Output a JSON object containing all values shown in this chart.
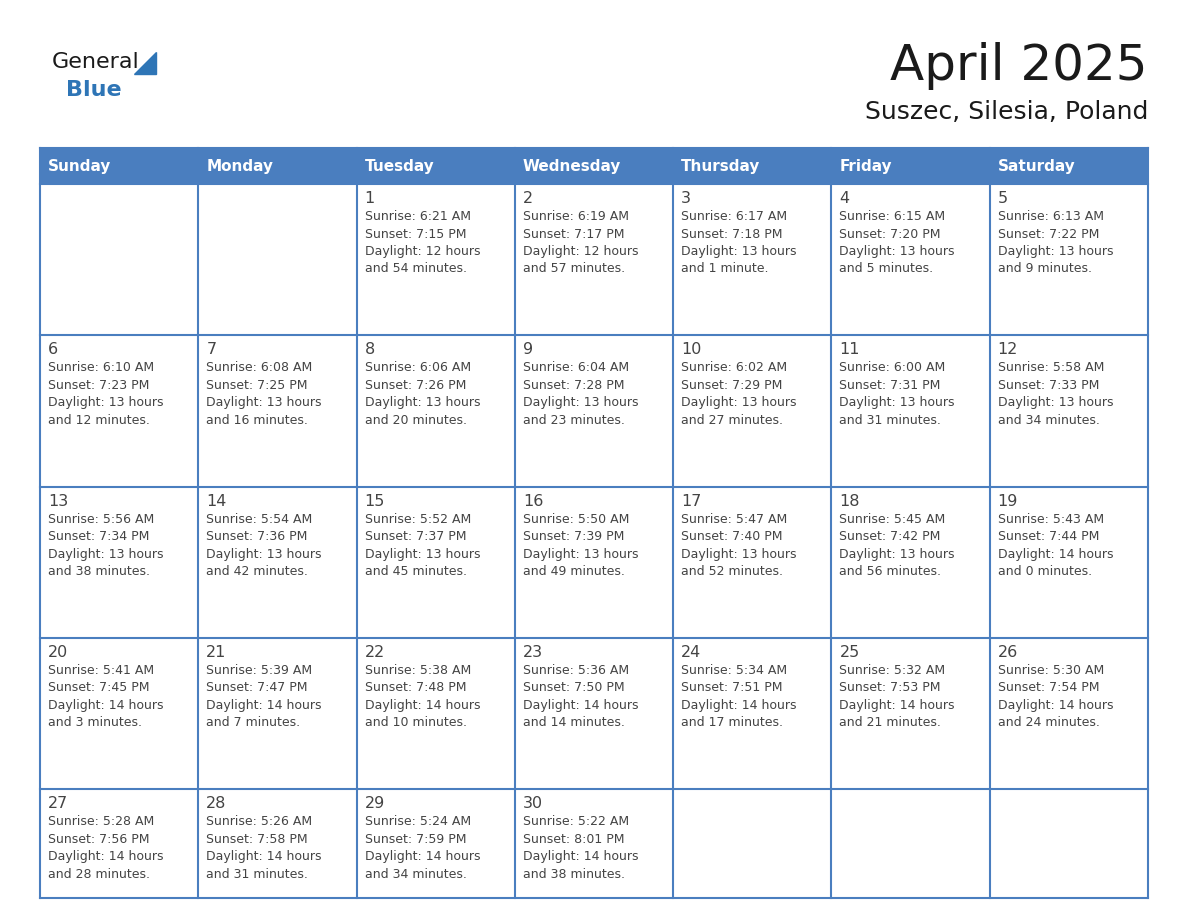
{
  "title": "April 2025",
  "subtitle": "Suszec, Silesia, Poland",
  "days_of_week": [
    "Sunday",
    "Monday",
    "Tuesday",
    "Wednesday",
    "Thursday",
    "Friday",
    "Saturday"
  ],
  "header_bg": "#4a7ebf",
  "header_text": "#FFFFFF",
  "cell_bg": "#FFFFFF",
  "border_color": "#4a7ebf",
  "text_color": "#444444",
  "title_color": "#1a1a1a",
  "subtitle_color": "#1a1a1a",
  "logo_general_color": "#1a1a1a",
  "logo_blue_color": "#2E75B6",
  "logo_triangle_color": "#2E75B6",
  "weeks": [
    [
      {
        "day": "",
        "text": ""
      },
      {
        "day": "",
        "text": ""
      },
      {
        "day": "1",
        "text": "Sunrise: 6:21 AM\nSunset: 7:15 PM\nDaylight: 12 hours\nand 54 minutes."
      },
      {
        "day": "2",
        "text": "Sunrise: 6:19 AM\nSunset: 7:17 PM\nDaylight: 12 hours\nand 57 minutes."
      },
      {
        "day": "3",
        "text": "Sunrise: 6:17 AM\nSunset: 7:18 PM\nDaylight: 13 hours\nand 1 minute."
      },
      {
        "day": "4",
        "text": "Sunrise: 6:15 AM\nSunset: 7:20 PM\nDaylight: 13 hours\nand 5 minutes."
      },
      {
        "day": "5",
        "text": "Sunrise: 6:13 AM\nSunset: 7:22 PM\nDaylight: 13 hours\nand 9 minutes."
      }
    ],
    [
      {
        "day": "6",
        "text": "Sunrise: 6:10 AM\nSunset: 7:23 PM\nDaylight: 13 hours\nand 12 minutes."
      },
      {
        "day": "7",
        "text": "Sunrise: 6:08 AM\nSunset: 7:25 PM\nDaylight: 13 hours\nand 16 minutes."
      },
      {
        "day": "8",
        "text": "Sunrise: 6:06 AM\nSunset: 7:26 PM\nDaylight: 13 hours\nand 20 minutes."
      },
      {
        "day": "9",
        "text": "Sunrise: 6:04 AM\nSunset: 7:28 PM\nDaylight: 13 hours\nand 23 minutes."
      },
      {
        "day": "10",
        "text": "Sunrise: 6:02 AM\nSunset: 7:29 PM\nDaylight: 13 hours\nand 27 minutes."
      },
      {
        "day": "11",
        "text": "Sunrise: 6:00 AM\nSunset: 7:31 PM\nDaylight: 13 hours\nand 31 minutes."
      },
      {
        "day": "12",
        "text": "Sunrise: 5:58 AM\nSunset: 7:33 PM\nDaylight: 13 hours\nand 34 minutes."
      }
    ],
    [
      {
        "day": "13",
        "text": "Sunrise: 5:56 AM\nSunset: 7:34 PM\nDaylight: 13 hours\nand 38 minutes."
      },
      {
        "day": "14",
        "text": "Sunrise: 5:54 AM\nSunset: 7:36 PM\nDaylight: 13 hours\nand 42 minutes."
      },
      {
        "day": "15",
        "text": "Sunrise: 5:52 AM\nSunset: 7:37 PM\nDaylight: 13 hours\nand 45 minutes."
      },
      {
        "day": "16",
        "text": "Sunrise: 5:50 AM\nSunset: 7:39 PM\nDaylight: 13 hours\nand 49 minutes."
      },
      {
        "day": "17",
        "text": "Sunrise: 5:47 AM\nSunset: 7:40 PM\nDaylight: 13 hours\nand 52 minutes."
      },
      {
        "day": "18",
        "text": "Sunrise: 5:45 AM\nSunset: 7:42 PM\nDaylight: 13 hours\nand 56 minutes."
      },
      {
        "day": "19",
        "text": "Sunrise: 5:43 AM\nSunset: 7:44 PM\nDaylight: 14 hours\nand 0 minutes."
      }
    ],
    [
      {
        "day": "20",
        "text": "Sunrise: 5:41 AM\nSunset: 7:45 PM\nDaylight: 14 hours\nand 3 minutes."
      },
      {
        "day": "21",
        "text": "Sunrise: 5:39 AM\nSunset: 7:47 PM\nDaylight: 14 hours\nand 7 minutes."
      },
      {
        "day": "22",
        "text": "Sunrise: 5:38 AM\nSunset: 7:48 PM\nDaylight: 14 hours\nand 10 minutes."
      },
      {
        "day": "23",
        "text": "Sunrise: 5:36 AM\nSunset: 7:50 PM\nDaylight: 14 hours\nand 14 minutes."
      },
      {
        "day": "24",
        "text": "Sunrise: 5:34 AM\nSunset: 7:51 PM\nDaylight: 14 hours\nand 17 minutes."
      },
      {
        "day": "25",
        "text": "Sunrise: 5:32 AM\nSunset: 7:53 PM\nDaylight: 14 hours\nand 21 minutes."
      },
      {
        "day": "26",
        "text": "Sunrise: 5:30 AM\nSunset: 7:54 PM\nDaylight: 14 hours\nand 24 minutes."
      }
    ],
    [
      {
        "day": "27",
        "text": "Sunrise: 5:28 AM\nSunset: 7:56 PM\nDaylight: 14 hours\nand 28 minutes."
      },
      {
        "day": "28",
        "text": "Sunrise: 5:26 AM\nSunset: 7:58 PM\nDaylight: 14 hours\nand 31 minutes."
      },
      {
        "day": "29",
        "text": "Sunrise: 5:24 AM\nSunset: 7:59 PM\nDaylight: 14 hours\nand 34 minutes."
      },
      {
        "day": "30",
        "text": "Sunrise: 5:22 AM\nSunset: 8:01 PM\nDaylight: 14 hours\nand 38 minutes."
      },
      {
        "day": "",
        "text": ""
      },
      {
        "day": "",
        "text": ""
      },
      {
        "day": "",
        "text": ""
      }
    ]
  ]
}
